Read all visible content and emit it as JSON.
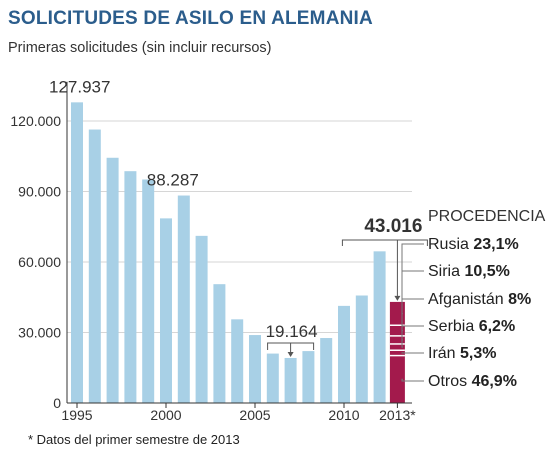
{
  "title": "SOLICITUDES DE ASILO EN ALEMANIA",
  "subtitle": "Primeras solicitudes (sin incluir recursos)",
  "footnote": "* Datos del primer semestre de 2013",
  "colors": {
    "bar": "#a8d0e6",
    "highlight": "#a31a4c",
    "title": "#2b5d8c",
    "grid": "#d6d6d6",
    "axis": "#333333"
  },
  "chart_data": {
    "type": "bar",
    "categories": [
      "1995",
      "1996",
      "1997",
      "1998",
      "1999",
      "2000",
      "2001",
      "2002",
      "2003",
      "2004",
      "2005",
      "2006",
      "2007",
      "2008",
      "2009",
      "2010",
      "2011",
      "2012",
      "2013*"
    ],
    "values": [
      127937,
      116367,
      104353,
      98644,
      95113,
      78564,
      88287,
      71127,
      50563,
      35607,
      28914,
      21029,
      19164,
      22085,
      27649,
      41332,
      45741,
      64539,
      43016
    ],
    "ylim": [
      0,
      135000
    ],
    "yticks": [
      0,
      30000,
      60000,
      90000,
      120000
    ],
    "ytick_labels": [
      "0",
      "30.000",
      "60.000",
      "90.000",
      "120.000"
    ],
    "xtick_labels": [
      {
        "index": 0,
        "label": "1995"
      },
      {
        "index": 5,
        "label": "2000"
      },
      {
        "index": 10,
        "label": "2005"
      },
      {
        "index": 15,
        "label": "2010"
      },
      {
        "index": 18,
        "label": "2013*"
      }
    ],
    "grid": true,
    "annotations": [
      {
        "index": 0,
        "label": "127.937"
      },
      {
        "index": 6,
        "label": "88.287"
      },
      {
        "index": 12,
        "label": "19.164"
      },
      {
        "index": 18,
        "label": "43.016"
      }
    ],
    "breakdown": {
      "title": "PROCEDENCIA",
      "items": [
        {
          "name": "Rusia",
          "pct": "23,1%",
          "value": 23.1
        },
        {
          "name": "Siria",
          "pct": "10,5%",
          "value": 10.5
        },
        {
          "name": "Afganistán",
          "pct": "8%",
          "value": 8
        },
        {
          "name": "Serbia",
          "pct": "6,2%",
          "value": 6.2
        },
        {
          "name": "Irán",
          "pct": "5,3%",
          "value": 5.3
        },
        {
          "name": "Otros",
          "pct": "46,9%",
          "value": 46.9
        }
      ]
    }
  }
}
